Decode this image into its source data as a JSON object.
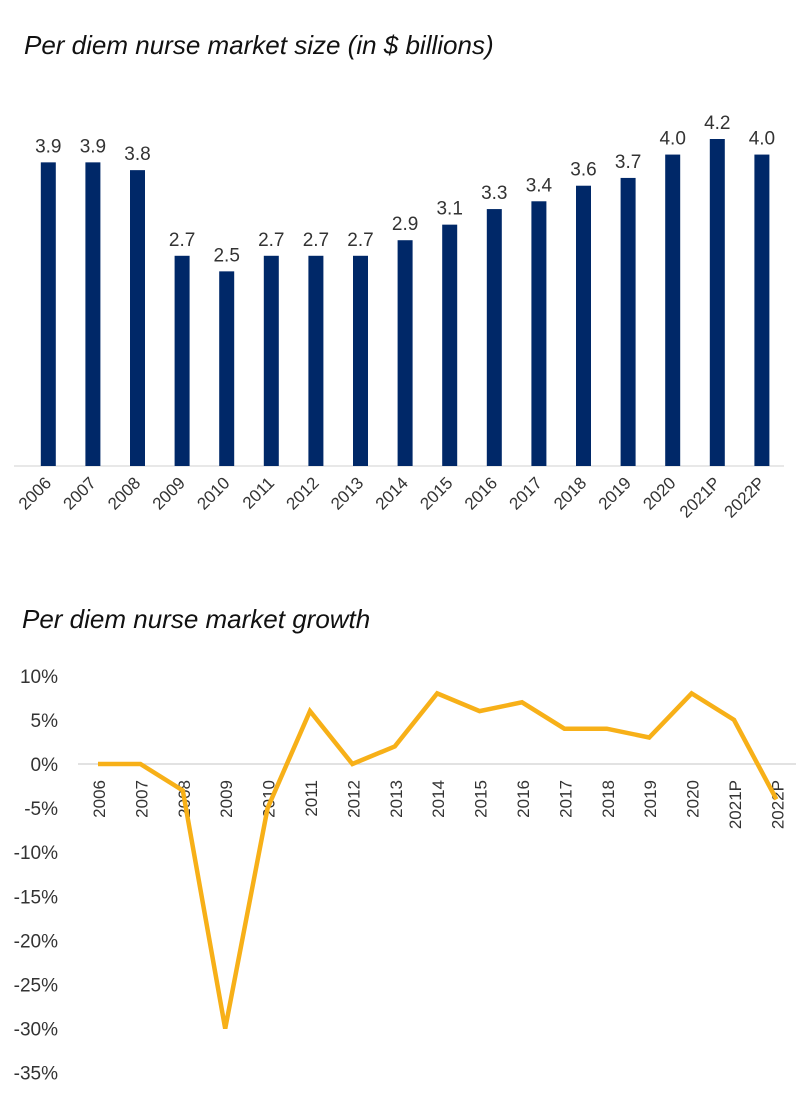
{
  "charts": {
    "size_title": "Per diem nurse market size (in $ billions)",
    "growth_title": "Per diem nurse market growth"
  },
  "chart_data": [
    {
      "type": "bar",
      "title": "Per diem nurse market size (in $ billions)",
      "categories": [
        "2006",
        "2007",
        "2008",
        "2009",
        "2010",
        "2011",
        "2012",
        "2013",
        "2014",
        "2015",
        "2016",
        "2017",
        "2018",
        "2019",
        "2020",
        "2021P",
        "2022P"
      ],
      "values": [
        3.9,
        3.9,
        3.8,
        2.7,
        2.5,
        2.7,
        2.7,
        2.7,
        2.9,
        3.1,
        3.3,
        3.4,
        3.6,
        3.7,
        4.0,
        4.2,
        4.0
      ],
      "labels": [
        "3.9",
        "3.9",
        "3.8",
        "2.7",
        "2.5",
        "2.7",
        "2.7",
        "2.7",
        "2.9",
        "3.1",
        "3.3",
        "3.4",
        "3.6",
        "3.7",
        "4.0",
        "4.2",
        "4.0"
      ],
      "color": "#002868",
      "ylim": [
        0,
        4.2
      ],
      "grid": false,
      "legend": false
    },
    {
      "type": "line",
      "title": "Per diem nurse market growth",
      "categories": [
        "2006",
        "2007",
        "2008",
        "2009",
        "2010",
        "2011",
        "2012",
        "2013",
        "2014",
        "2015",
        "2016",
        "2017",
        "2018",
        "2019",
        "2020",
        "2021P",
        "2022P"
      ],
      "values": [
        0,
        0,
        -3,
        -30,
        -5,
        6,
        0,
        2,
        8,
        6,
        7,
        4,
        4,
        3,
        8,
        5,
        -4
      ],
      "yticks": [
        "10%",
        "5%",
        "0%",
        "-5%",
        "-10%",
        "-15%",
        "-20%",
        "-25%",
        "-30%",
        "-35%"
      ],
      "ytick_values": [
        10,
        5,
        0,
        -5,
        -10,
        -15,
        -20,
        -25,
        -30,
        -35
      ],
      "ylim": [
        -35,
        10
      ],
      "color": "#F7B018",
      "grid": false,
      "legend": false
    }
  ]
}
